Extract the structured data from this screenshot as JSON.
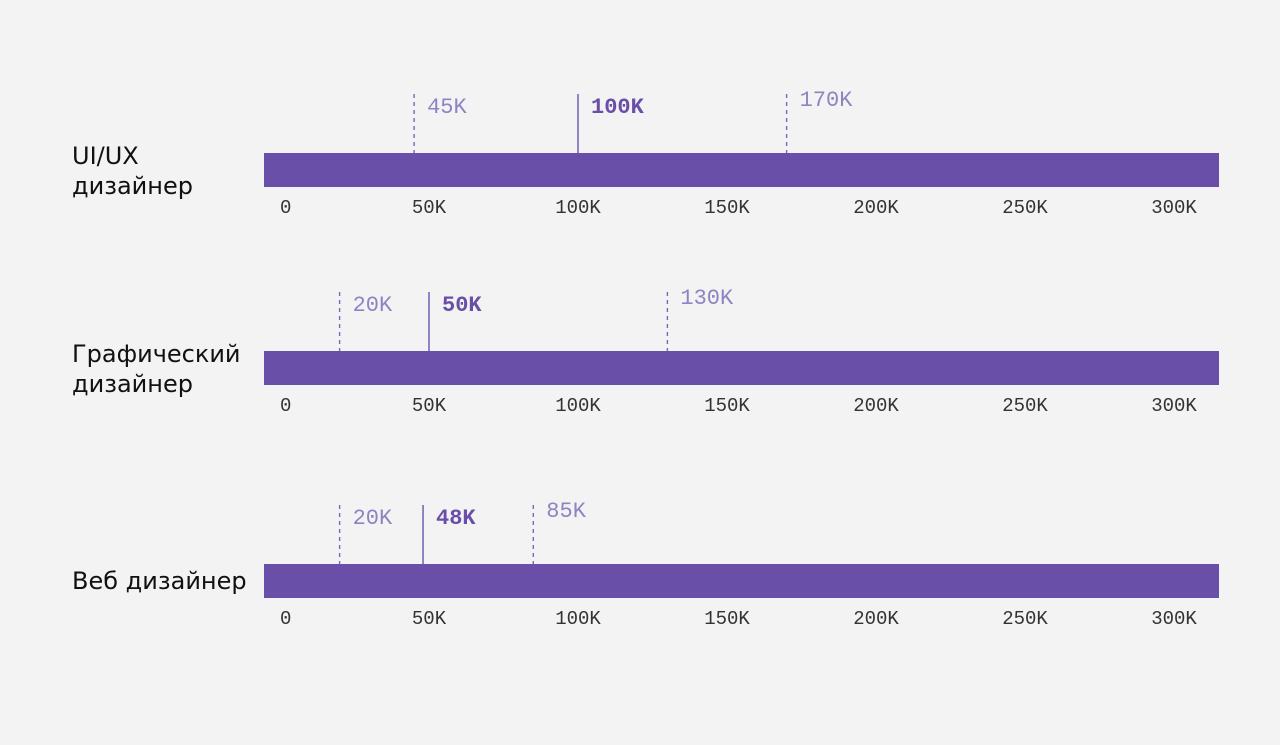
{
  "chart_data": {
    "type": "bar",
    "orientation": "horizontal",
    "axis": {
      "min": 0,
      "max": 320,
      "ticks": [
        0,
        50,
        100,
        150,
        200,
        250,
        300
      ],
      "tick_labels": [
        "0",
        "50K",
        "100K",
        "150K",
        "200K",
        "250K",
        "300K"
      ]
    },
    "grid": false,
    "colors": {
      "bar": "#6a4fa8",
      "marker_line": "#7b68b8",
      "marker_text": "#8f83c2",
      "median_text": "#6a4fa8",
      "background": "#f3f3f3"
    },
    "rows": [
      {
        "role": [
          "UI/UX",
          "дизайнер"
        ],
        "min": 45,
        "median": 100,
        "max": 170,
        "min_label": "45K",
        "median_label": "100K",
        "max_label": "170K"
      },
      {
        "role": [
          "Графический",
          "дизайнер"
        ],
        "min": 20,
        "median": 50,
        "max": 130,
        "min_label": "20K",
        "median_label": "50K",
        "max_label": "130K"
      },
      {
        "role": [
          "Веб дизайнер"
        ],
        "min": 20,
        "median": 48,
        "max": 85,
        "min_label": "20K",
        "median_label": "48K",
        "max_label": "85K"
      }
    ]
  }
}
